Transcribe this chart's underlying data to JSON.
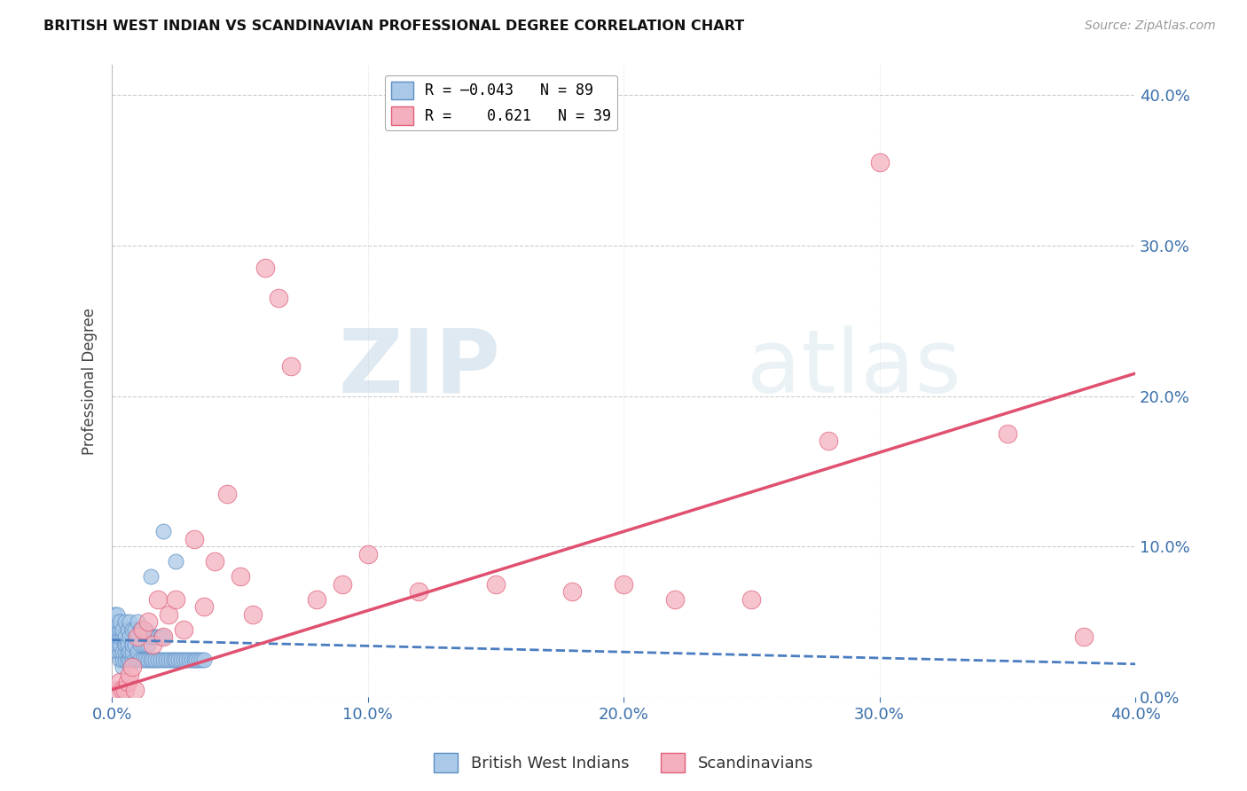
{
  "title": "BRITISH WEST INDIAN VS SCANDINAVIAN PROFESSIONAL DEGREE CORRELATION CHART",
  "source": "Source: ZipAtlas.com",
  "ylabel": "Professional Degree",
  "xlim": [
    0.0,
    0.4
  ],
  "ylim": [
    0.0,
    0.42
  ],
  "xtick_vals": [
    0.0,
    0.1,
    0.2,
    0.3,
    0.4
  ],
  "xtick_labels": [
    "0.0%",
    "10.0%",
    "20.0%",
    "30.0%",
    "40.0%"
  ],
  "ytick_vals": [
    0.0,
    0.1,
    0.2,
    0.3,
    0.4
  ],
  "ytick_labels_right": [
    "0.0%",
    "10.0%",
    "20.0%",
    "30.0%",
    "40.0%"
  ],
  "blue_color": "#aac9e8",
  "pink_color": "#f4b0be",
  "blue_edge_color": "#5b8ec4",
  "pink_edge_color": "#e0607a",
  "blue_line_color": "#4a7cc0",
  "pink_line_color": "#e05070",
  "watermark_zip": "ZIP",
  "watermark_atlas": "atlas",
  "grid_color": "#cccccc",
  "background_color": "#ffffff",
  "blue_points_x": [
    0.0,
    0.001,
    0.001,
    0.001,
    0.001,
    0.001,
    0.002,
    0.002,
    0.002,
    0.002,
    0.002,
    0.002,
    0.003,
    0.003,
    0.003,
    0.003,
    0.003,
    0.003,
    0.004,
    0.004,
    0.004,
    0.004,
    0.004,
    0.005,
    0.005,
    0.005,
    0.005,
    0.005,
    0.006,
    0.006,
    0.006,
    0.006,
    0.007,
    0.007,
    0.007,
    0.007,
    0.008,
    0.008,
    0.008,
    0.008,
    0.009,
    0.009,
    0.009,
    0.01,
    0.01,
    0.01,
    0.01,
    0.011,
    0.011,
    0.011,
    0.012,
    0.012,
    0.012,
    0.013,
    0.013,
    0.013,
    0.014,
    0.014,
    0.015,
    0.015,
    0.016,
    0.016,
    0.017,
    0.017,
    0.018,
    0.018,
    0.019,
    0.019,
    0.02,
    0.02,
    0.021,
    0.022,
    0.023,
    0.024,
    0.025,
    0.026,
    0.027,
    0.028,
    0.029,
    0.03,
    0.031,
    0.032,
    0.033,
    0.034,
    0.035,
    0.036,
    0.02,
    0.025,
    0.015
  ],
  "blue_points_y": [
    0.04,
    0.035,
    0.04,
    0.045,
    0.05,
    0.055,
    0.03,
    0.035,
    0.04,
    0.045,
    0.05,
    0.055,
    0.025,
    0.03,
    0.035,
    0.04,
    0.045,
    0.05,
    0.02,
    0.025,
    0.03,
    0.04,
    0.045,
    0.025,
    0.03,
    0.035,
    0.04,
    0.05,
    0.025,
    0.03,
    0.035,
    0.045,
    0.025,
    0.03,
    0.04,
    0.05,
    0.025,
    0.03,
    0.035,
    0.045,
    0.025,
    0.035,
    0.045,
    0.025,
    0.03,
    0.04,
    0.05,
    0.025,
    0.035,
    0.045,
    0.025,
    0.035,
    0.045,
    0.025,
    0.035,
    0.045,
    0.025,
    0.035,
    0.025,
    0.04,
    0.025,
    0.04,
    0.025,
    0.04,
    0.025,
    0.04,
    0.025,
    0.04,
    0.025,
    0.04,
    0.025,
    0.025,
    0.025,
    0.025,
    0.025,
    0.025,
    0.025,
    0.025,
    0.025,
    0.025,
    0.025,
    0.025,
    0.025,
    0.025,
    0.025,
    0.025,
    0.11,
    0.09,
    0.08
  ],
  "pink_points_x": [
    0.002,
    0.003,
    0.004,
    0.005,
    0.006,
    0.007,
    0.008,
    0.009,
    0.01,
    0.012,
    0.014,
    0.016,
    0.018,
    0.02,
    0.022,
    0.025,
    0.028,
    0.032,
    0.036,
    0.04,
    0.045,
    0.05,
    0.055,
    0.06,
    0.065,
    0.07,
    0.08,
    0.09,
    0.1,
    0.12,
    0.15,
    0.18,
    0.2,
    0.22,
    0.25,
    0.28,
    0.3,
    0.35,
    0.38
  ],
  "pink_points_y": [
    0.005,
    0.01,
    0.005,
    0.005,
    0.01,
    0.015,
    0.02,
    0.005,
    0.04,
    0.045,
    0.05,
    0.035,
    0.065,
    0.04,
    0.055,
    0.065,
    0.045,
    0.105,
    0.06,
    0.09,
    0.135,
    0.08,
    0.055,
    0.285,
    0.265,
    0.22,
    0.065,
    0.075,
    0.095,
    0.07,
    0.075,
    0.07,
    0.075,
    0.065,
    0.065,
    0.17,
    0.355,
    0.175,
    0.04
  ],
  "blue_trendline_x": [
    0.0,
    0.4
  ],
  "blue_trendline_y": [
    0.038,
    0.022
  ],
  "pink_trendline_x": [
    0.0,
    0.4
  ],
  "pink_trendline_y": [
    0.005,
    0.215
  ]
}
